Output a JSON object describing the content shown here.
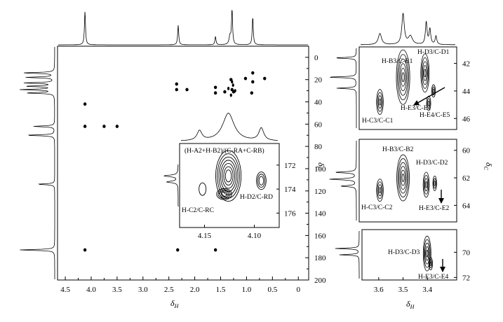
{
  "colors": {
    "ink": "#000000",
    "paper": "#ffffff"
  },
  "chart_data": [
    {
      "id": "main",
      "type": "2D NMR HSQC spectrum",
      "xlabel_main": "δ",
      "xlabel_sub": "H",
      "ylabel": "",
      "xlim": [
        4.65,
        -0.2
      ],
      "ylim": [
        -10,
        200
      ],
      "x_ticks": [
        "4.5",
        "4.0",
        "3.5",
        "3.0",
        "2.5",
        "2.0",
        "1.5",
        "1.0",
        "0.5",
        "0"
      ],
      "y_ticks": [
        "0",
        "20",
        "40",
        "60",
        "80",
        "100",
        "120",
        "140",
        "160",
        "180",
        "200"
      ],
      "cross_peaks": [
        {
          "x": 4.12,
          "y": 42
        },
        {
          "x": 4.12,
          "y": 62
        },
        {
          "x": 3.75,
          "y": 62
        },
        {
          "x": 3.5,
          "y": 62
        },
        {
          "x": 2.35,
          "y": 24
        },
        {
          "x": 2.35,
          "y": 29
        },
        {
          "x": 2.15,
          "y": 29
        },
        {
          "x": 1.6,
          "y": 27
        },
        {
          "x": 1.6,
          "y": 32
        },
        {
          "x": 1.42,
          "y": 31
        },
        {
          "x": 1.28,
          "y": 29
        },
        {
          "x": 1.25,
          "y": 31
        },
        {
          "x": 1.3,
          "y": 20
        },
        {
          "x": 1.02,
          "y": 19
        },
        {
          "x": 0.88,
          "y": 14
        },
        {
          "x": 0.88,
          "y": 22
        },
        {
          "x": 0.9,
          "y": 32
        },
        {
          "x": 0.65,
          "y": 19
        },
        {
          "x": 4.12,
          "y": 173
        },
        {
          "x": 2.33,
          "y": 173
        },
        {
          "x": 1.6,
          "y": 173
        }
      ],
      "top_projection_peaks": [
        4.12,
        2.32,
        1.6,
        1.28,
        0.88
      ],
      "left_projection_peaks": [
        14,
        23,
        29,
        62,
        70,
        114,
        173
      ]
    },
    {
      "id": "inset",
      "type": "2D NMR HSQC expansion",
      "xlim": [
        4.175,
        4.075
      ],
      "ylim": [
        170.2,
        177.2
      ],
      "x_ticks": [
        "4.15",
        "4.10"
      ],
      "y_ticks": [
        "172",
        "174",
        "176"
      ],
      "annotations": [
        "(H-A2+H-B2)/(C-RA+C-RB)",
        "H-D2/C-RD",
        "H-C2/C-RC"
      ],
      "cross_peaks": [
        {
          "label": "(H-A2+H-B2)/(C-RA+C-RB)",
          "x": 4.126,
          "y": 172.9
        },
        {
          "label": "H-D2/C-RD",
          "x": 4.093,
          "y": 173.3
        },
        {
          "label": "H-C2/C-RC",
          "x": 4.152,
          "y": 174.0
        }
      ]
    },
    {
      "id": "right-top",
      "type": "2D NMR HSQC expansion",
      "xlim": [
        3.68,
        3.28
      ],
      "ylim": [
        40.8,
        46.8
      ],
      "y_ticks": [
        "42",
        "44",
        "46"
      ],
      "annotations": [
        "H-B3/C-B1",
        "H-D3/C-D1",
        "H-E3/C-E1",
        "H-E4/C-E5",
        "H-C3/C-C1"
      ]
    },
    {
      "id": "right-middle",
      "type": "2D NMR HSQC expansion",
      "xlim": [
        3.68,
        3.28
      ],
      "ylim": [
        59.2,
        65.2
      ],
      "y_ticks": [
        "60",
        "62",
        "64"
      ],
      "annotations": [
        "H-B3/C-B2",
        "H-D3/C-D2",
        "H-C3/C-C2",
        "H-E3/C-E2"
      ]
    },
    {
      "id": "right-bottom",
      "type": "2D NMR HSQC expansion",
      "xlim": [
        3.68,
        3.28
      ],
      "ylim": [
        68.2,
        72.2
      ],
      "x_ticks": [
        "3.6",
        "3.5",
        "3.4"
      ],
      "y_ticks": [
        "70",
        "72"
      ],
      "xlabel_main": "δ",
      "xlabel_sub": "H",
      "annotations": [
        "H-D3/C-D3",
        "H-E3/C-E4"
      ]
    }
  ],
  "shared": {
    "right_ylabel": "δ",
    "right_ylabel_sub": "C"
  }
}
